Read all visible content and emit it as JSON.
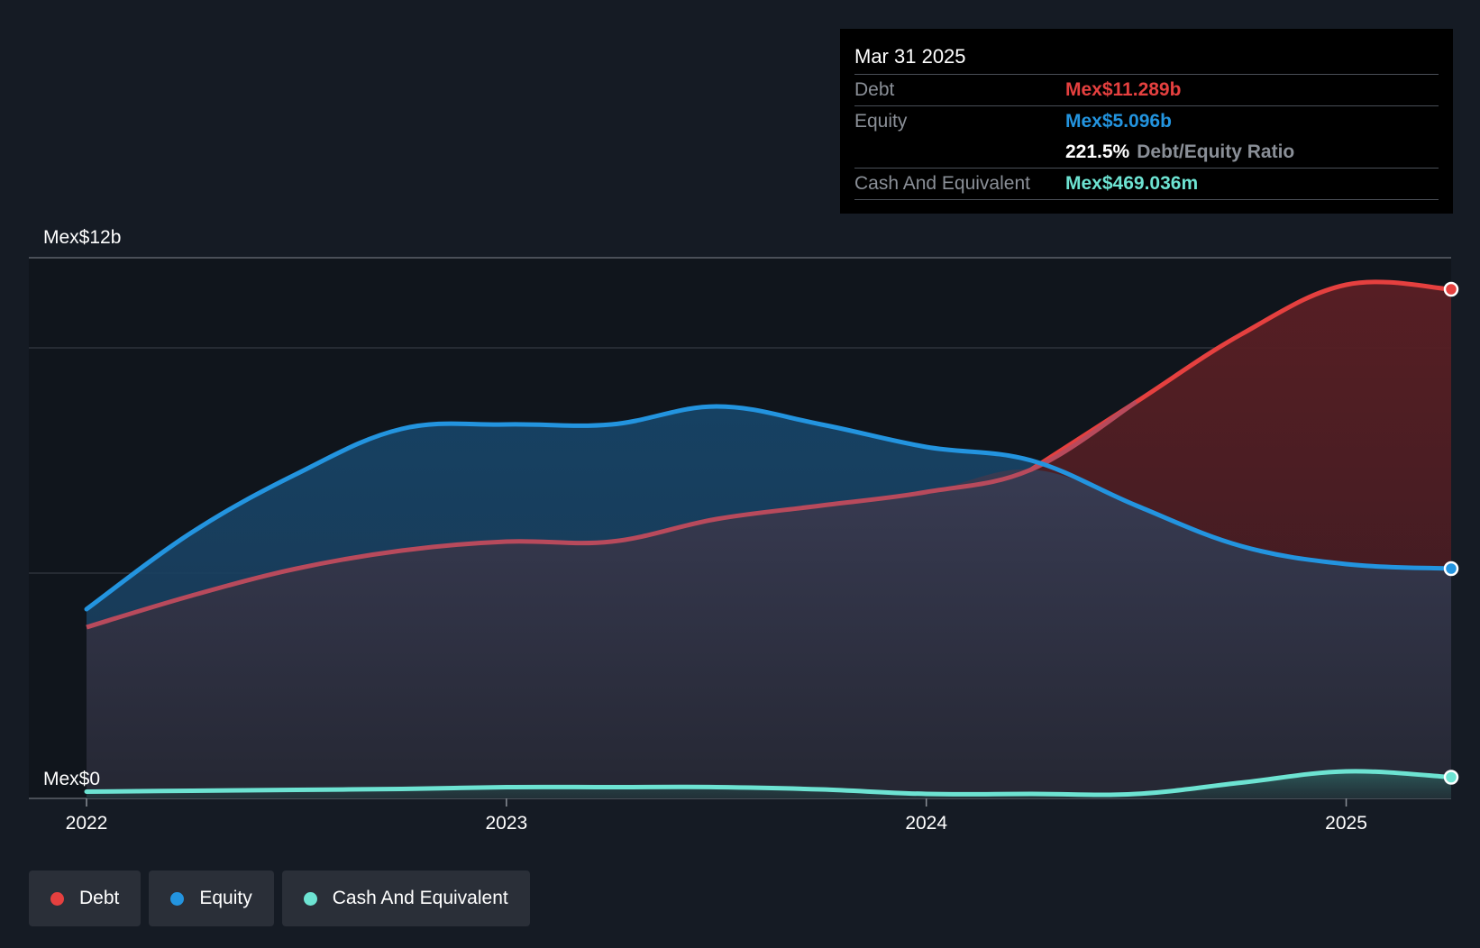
{
  "colors": {
    "background": "#151b24",
    "debt": "#e5403f",
    "equity": "#2394df",
    "cash": "#6de3d2",
    "grid": "#3a3f47"
  },
  "tooltip": {
    "date": "Mar 31 2025",
    "debt_label": "Debt",
    "debt_value": "Mex$11.289b",
    "equity_label": "Equity",
    "equity_value": "Mex$5.096b",
    "ratio_value": "221.5%",
    "ratio_label": "Debt/Equity Ratio",
    "cash_label": "Cash And Equivalent",
    "cash_value": "Mex$469.036m"
  },
  "legend": [
    {
      "label": "Debt",
      "color": "#e5403f"
    },
    {
      "label": "Equity",
      "color": "#2394df"
    },
    {
      "label": "Cash And Equivalent",
      "color": "#6de3d2"
    }
  ],
  "chart_data": {
    "type": "area",
    "title": "",
    "xlabel": "",
    "ylabel": "",
    "y_top_label": "Mex$12b",
    "y_bottom_label": "Mex$0",
    "ylim": [
      0,
      12
    ],
    "xlim": [
      2022.0,
      2025.25
    ],
    "x_ticks": [
      2022,
      2023,
      2024,
      2025
    ],
    "x_tick_labels": [
      "2022",
      "2023",
      "2024",
      "2025"
    ],
    "grid": true,
    "legend_position": "bottom-left",
    "x": [
      2022.0,
      2022.25,
      2022.5,
      2022.75,
      2023.0,
      2023.25,
      2023.5,
      2023.75,
      2024.0,
      2024.25,
      2024.5,
      2024.75,
      2025.0,
      2025.25
    ],
    "series": [
      {
        "name": "Debt",
        "color": "#e5403f",
        "values": [
          3.8,
          4.5,
          5.1,
          5.5,
          5.7,
          5.7,
          6.2,
          6.5,
          6.8,
          7.3,
          8.8,
          10.3,
          11.4,
          11.3
        ]
      },
      {
        "name": "Equity",
        "color": "#2394df",
        "values": [
          4.2,
          5.9,
          7.2,
          8.2,
          8.3,
          8.3,
          8.7,
          8.3,
          7.8,
          7.5,
          6.5,
          5.6,
          5.2,
          5.1
        ]
      },
      {
        "name": "Cash And Equivalent",
        "color": "#6de3d2",
        "values": [
          0.15,
          0.17,
          0.19,
          0.21,
          0.25,
          0.25,
          0.25,
          0.2,
          0.1,
          0.1,
          0.1,
          0.35,
          0.6,
          0.47
        ]
      }
    ]
  }
}
